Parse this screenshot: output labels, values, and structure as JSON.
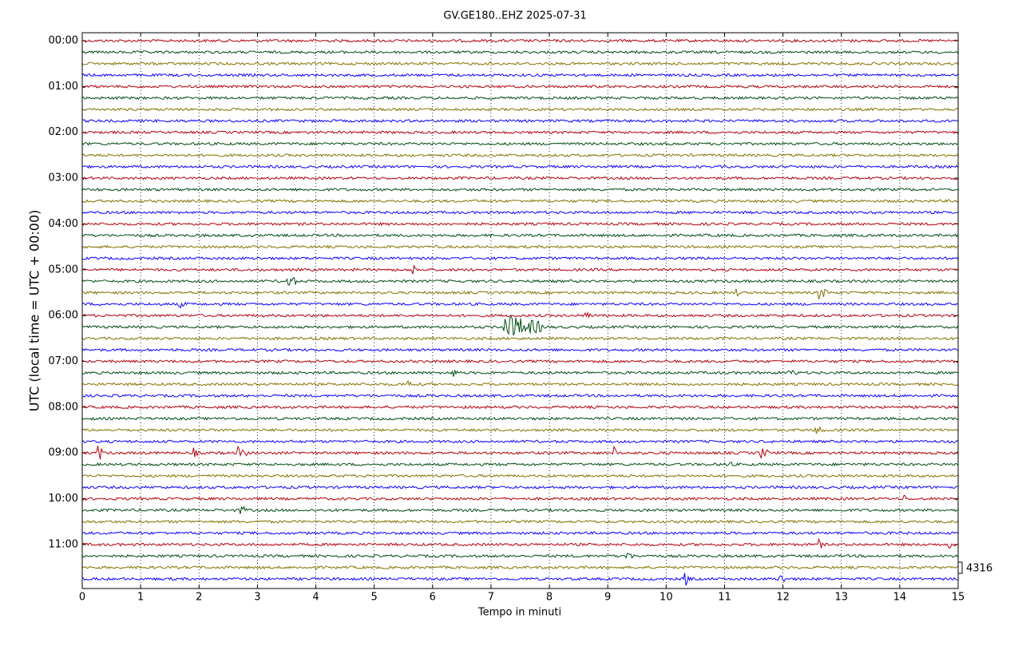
{
  "chart_data": {
    "type": "helicorder",
    "title": "GV.GE180..EHZ 2025-07-31",
    "xlabel": "Tempo in minuti",
    "ylabel": "UTC (local time = UTC + 00:00)",
    "xlim": [
      0,
      15
    ],
    "xticks": [
      0,
      1,
      2,
      3,
      4,
      5,
      6,
      7,
      8,
      9,
      10,
      11,
      12,
      13,
      14,
      15
    ],
    "ylim": [
      -0.7,
      47.84
    ],
    "yticks": [
      {
        "value": 0,
        "label": "00:00"
      },
      {
        "value": 4,
        "label": "01:00"
      },
      {
        "value": 8,
        "label": "02:00"
      },
      {
        "value": 12,
        "label": "03:00"
      },
      {
        "value": 16,
        "label": "04:00"
      },
      {
        "value": 20,
        "label": "05:00"
      },
      {
        "value": 24,
        "label": "06:00"
      },
      {
        "value": 28,
        "label": "07:00"
      },
      {
        "value": 32,
        "label": "08:00"
      },
      {
        "value": 36,
        "label": "09:00"
      },
      {
        "value": 40,
        "label": "10:00"
      },
      {
        "value": 44,
        "label": "11:00"
      }
    ],
    "rows": 48,
    "colors": [
      "#b2000f",
      "#004c12",
      "#847200",
      "#0e01ff"
    ],
    "grid": true,
    "scale": 4316,
    "events": [
      {
        "row": 25,
        "minute": 7.2,
        "duration": 0.85,
        "amplitude": 14
      },
      {
        "row": 21,
        "minute": 3.5,
        "duration": 0.2,
        "amplitude": 8
      },
      {
        "row": 20,
        "minute": 5.65,
        "duration": 0.15,
        "amplitude": 6
      },
      {
        "row": 22,
        "minute": 11.15,
        "duration": 0.15,
        "amplitude": 6
      },
      {
        "row": 22,
        "minute": 12.6,
        "duration": 0.2,
        "amplitude": 8
      },
      {
        "row": 23,
        "minute": 1.65,
        "duration": 0.15,
        "amplitude": 5
      },
      {
        "row": 24,
        "minute": 8.6,
        "duration": 0.15,
        "amplitude": 6
      },
      {
        "row": 29,
        "minute": 6.3,
        "duration": 0.15,
        "amplitude": 7
      },
      {
        "row": 30,
        "minute": 5.55,
        "duration": 0.15,
        "amplitude": 7
      },
      {
        "row": 29,
        "minute": 12.1,
        "duration": 0.2,
        "amplitude": 5
      },
      {
        "row": 34,
        "minute": 12.5,
        "duration": 0.3,
        "amplitude": 5
      },
      {
        "row": 36,
        "minute": 0.25,
        "duration": 0.15,
        "amplitude": 11
      },
      {
        "row": 36,
        "minute": 1.9,
        "duration": 0.1,
        "amplitude": 6
      },
      {
        "row": 36,
        "minute": 2.65,
        "duration": 0.2,
        "amplitude": 7
      },
      {
        "row": 36,
        "minute": 9.1,
        "duration": 0.1,
        "amplitude": 7
      },
      {
        "row": 36,
        "minute": 11.6,
        "duration": 0.2,
        "amplitude": 7
      },
      {
        "row": 37,
        "minute": 11.0,
        "duration": 0.15,
        "amplitude": 6
      },
      {
        "row": 40,
        "minute": 14.05,
        "duration": 0.1,
        "amplitude": 8
      },
      {
        "row": 41,
        "minute": 2.7,
        "duration": 0.15,
        "amplitude": 6
      },
      {
        "row": 41,
        "minute": 7.3,
        "duration": 0.1,
        "amplitude": 6
      },
      {
        "row": 44,
        "minute": 12.6,
        "duration": 0.1,
        "amplitude": 7
      },
      {
        "row": 44,
        "minute": 14.8,
        "duration": 0.1,
        "amplitude": 7
      },
      {
        "row": 45,
        "minute": 9.3,
        "duration": 0.15,
        "amplitude": 6
      },
      {
        "row": 47,
        "minute": 10.3,
        "duration": 0.15,
        "amplitude": 9
      },
      {
        "row": 47,
        "minute": 11.9,
        "duration": 0.15,
        "amplitude": 8
      }
    ]
  }
}
